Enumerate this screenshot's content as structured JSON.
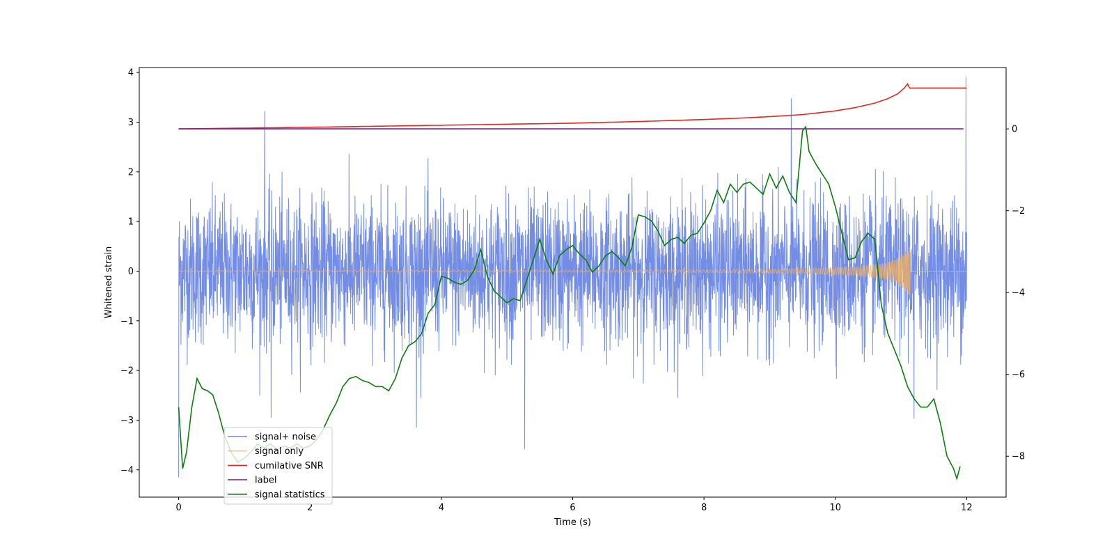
{
  "chart_data": {
    "type": "line",
    "title": "",
    "xlabel": "Time (s)",
    "ylabel": "Whitened strain",
    "ylabel_right": "",
    "xlim": [
      -0.6,
      12.6
    ],
    "ylim": [
      -4.55,
      4.1
    ],
    "ylim_right": [
      -9.0,
      1.5
    ],
    "xticks": [
      0,
      2,
      4,
      6,
      8,
      10,
      12
    ],
    "yticks": [
      -4,
      -3,
      -2,
      -1,
      0,
      1,
      2,
      3,
      4
    ],
    "yticks_right": [
      -8,
      -6,
      -4,
      -2,
      0
    ],
    "grid": false,
    "legend_position": "lower-left",
    "series": [
      {
        "name": "signal+ noise",
        "axis": "left",
        "color": "#6b86e3",
        "kind": "noise",
        "x_range": [
          0,
          12
        ],
        "typical_amplitude": 1.5,
        "notable_peaks": [
          {
            "x": 1.31,
            "y": 3.22
          },
          {
            "x": 1.41,
            "y": 3.18
          },
          {
            "x": 9.33,
            "y": 3.48
          },
          {
            "x": 11.99,
            "y": 3.9
          },
          {
            "x": 0.0,
            "y": -4.15
          },
          {
            "x": 1.41,
            "y": -2.95
          },
          {
            "x": 3.62,
            "y": -3.15
          },
          {
            "x": 5.27,
            "y": -3.58
          },
          {
            "x": 11.2,
            "y": -2.97
          }
        ]
      },
      {
        "name": "signal only",
        "axis": "left",
        "color": "#f5b35b",
        "kind": "chirp",
        "x_range": [
          0,
          11.13
        ],
        "after_end_value": 0,
        "envelope": [
          {
            "x": 0,
            "y": 0.01
          },
          {
            "x": 6,
            "y": 0.02
          },
          {
            "x": 8,
            "y": 0.03
          },
          {
            "x": 9.5,
            "y": 0.05
          },
          {
            "x": 10.3,
            "y": 0.09
          },
          {
            "x": 10.8,
            "y": 0.17
          },
          {
            "x": 11.0,
            "y": 0.3
          },
          {
            "x": 11.1,
            "y": 0.45
          },
          {
            "x": 11.13,
            "y": 0.55
          }
        ]
      },
      {
        "name": "cumilative SNR",
        "axis": "right",
        "color": "#e8251c",
        "x": [
          0,
          2,
          4,
          6,
          7,
          8,
          8.5,
          9,
          9.5,
          10,
          10.3,
          10.6,
          10.8,
          10.95,
          11.05,
          11.1,
          11.13,
          12
        ],
        "values": [
          0.0,
          0.04,
          0.09,
          0.14,
          0.18,
          0.23,
          0.26,
          0.3,
          0.35,
          0.44,
          0.52,
          0.63,
          0.74,
          0.86,
          1.0,
          1.1,
          1.0,
          1.0
        ]
      },
      {
        "name": "label",
        "axis": "right",
        "color": "#7b1a8c",
        "x": [
          0,
          11.95
        ],
        "values": [
          0,
          0
        ]
      },
      {
        "name": "signal statistics",
        "axis": "right",
        "color": "#0a7d0a",
        "x": [
          0.0,
          0.06,
          0.12,
          0.2,
          0.28,
          0.36,
          0.44,
          0.52,
          0.6,
          0.7,
          0.8,
          0.9,
          1.0,
          1.1,
          1.2,
          1.3,
          1.4,
          1.5,
          1.6,
          1.7,
          1.8,
          1.9,
          2.0,
          2.1,
          2.2,
          2.3,
          2.4,
          2.5,
          2.6,
          2.7,
          2.8,
          2.9,
          3.0,
          3.1,
          3.2,
          3.3,
          3.4,
          3.5,
          3.6,
          3.7,
          3.8,
          3.9,
          4.0,
          4.1,
          4.2,
          4.3,
          4.4,
          4.5,
          4.6,
          4.7,
          4.8,
          4.9,
          5.0,
          5.1,
          5.2,
          5.3,
          5.4,
          5.5,
          5.6,
          5.7,
          5.8,
          5.9,
          6.0,
          6.1,
          6.2,
          6.3,
          6.4,
          6.5,
          6.6,
          6.7,
          6.8,
          6.9,
          7.0,
          7.1,
          7.2,
          7.3,
          7.4,
          7.5,
          7.6,
          7.7,
          7.8,
          7.9,
          8.0,
          8.1,
          8.2,
          8.3,
          8.4,
          8.5,
          8.6,
          8.7,
          8.8,
          8.9,
          9.0,
          9.1,
          9.2,
          9.3,
          9.4,
          9.5,
          9.55,
          9.6,
          9.7,
          9.8,
          9.9,
          10.0,
          10.1,
          10.2,
          10.3,
          10.4,
          10.5,
          10.6,
          10.7,
          10.8,
          10.9,
          11.0,
          11.1,
          11.2,
          11.3,
          11.4,
          11.5,
          11.6,
          11.7,
          11.8,
          11.85,
          11.9
        ],
        "values": [
          -6.8,
          -8.3,
          -7.9,
          -6.8,
          -6.1,
          -6.35,
          -6.4,
          -6.5,
          -6.9,
          -7.5,
          -7.9,
          -8.15,
          -8.05,
          -7.9,
          -7.7,
          -7.8,
          -7.7,
          -7.85,
          -7.75,
          -7.8,
          -7.7,
          -7.8,
          -7.75,
          -7.6,
          -7.35,
          -7.0,
          -6.7,
          -6.3,
          -6.1,
          -6.05,
          -6.15,
          -6.2,
          -6.3,
          -6.3,
          -6.4,
          -6.1,
          -5.6,
          -5.3,
          -5.2,
          -5.0,
          -4.5,
          -4.3,
          -3.6,
          -3.65,
          -3.75,
          -3.8,
          -3.7,
          -3.45,
          -2.95,
          -3.6,
          -3.95,
          -4.1,
          -4.25,
          -4.15,
          -4.2,
          -3.7,
          -3.2,
          -2.7,
          -3.2,
          -3.55,
          -3.1,
          -2.95,
          -2.85,
          -3.05,
          -3.2,
          -3.5,
          -3.35,
          -3.1,
          -3.0,
          -3.15,
          -3.35,
          -2.9,
          -2.1,
          -2.15,
          -2.25,
          -2.5,
          -2.85,
          -2.7,
          -2.65,
          -2.8,
          -2.6,
          -2.55,
          -2.3,
          -2.0,
          -1.5,
          -1.8,
          -1.35,
          -1.55,
          -1.35,
          -1.3,
          -1.45,
          -1.6,
          -1.1,
          -1.45,
          -1.15,
          -1.55,
          -1.8,
          -0.05,
          0.05,
          -0.55,
          -0.85,
          -1.1,
          -1.35,
          -1.9,
          -2.55,
          -3.2,
          -3.15,
          -2.75,
          -2.55,
          -2.7,
          -4.3,
          -5.0,
          -5.4,
          -5.8,
          -6.3,
          -6.6,
          -6.8,
          -6.8,
          -6.6,
          -7.2,
          -8.0,
          -8.3,
          -8.55,
          -8.25
        ]
      }
    ]
  }
}
